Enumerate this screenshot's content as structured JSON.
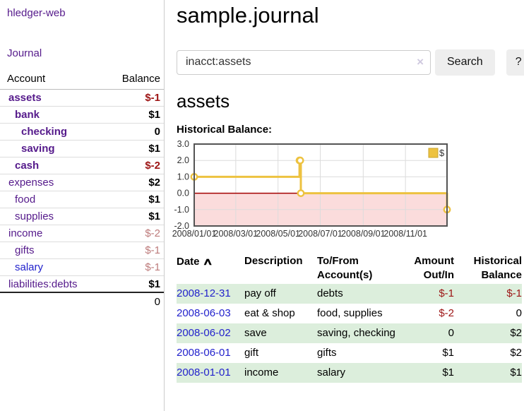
{
  "colors": {
    "link_purple": "#551a8b",
    "link_blue": "#2222cc",
    "negative_strong": "#9d1414",
    "negative_soft": "#bd7b7b",
    "row_green": "#dceedc",
    "button_bg": "#eeeeee",
    "chart_gold": "#edc240",
    "chart_negative_fill": "#fbdcdc",
    "chart_zero_line": "#a40000",
    "chart_grid": "#dcdcdc",
    "chart_border": "#545454"
  },
  "sidebar": {
    "brand": "hledger-web",
    "journal_link": "Journal",
    "header": {
      "account": "Account",
      "balance": "Balance"
    },
    "accounts": [
      {
        "name": "assets",
        "indent": 1,
        "bold": true,
        "balance": "$-1",
        "balance_style": "neg-strong",
        "link": "purple"
      },
      {
        "name": "bank",
        "indent": 2,
        "bold": true,
        "balance": "$1",
        "balance_style": "pos",
        "link": "purple"
      },
      {
        "name": "checking",
        "indent": 3,
        "bold": true,
        "balance": "0",
        "balance_style": "pos",
        "link": "purple"
      },
      {
        "name": "saving",
        "indent": 3,
        "bold": true,
        "balance": "$1",
        "balance_style": "pos",
        "link": "purple"
      },
      {
        "name": "cash",
        "indent": 2,
        "bold": true,
        "balance": "$-2",
        "balance_style": "neg-strong",
        "link": "purple"
      },
      {
        "name": "expenses",
        "indent": 1,
        "bold": false,
        "balance": "$2",
        "balance_style": "pos",
        "link": "purple"
      },
      {
        "name": "food",
        "indent": 2,
        "bold": false,
        "balance": "$1",
        "balance_style": "pos",
        "link": "purple"
      },
      {
        "name": "supplies",
        "indent": 2,
        "bold": false,
        "balance": "$1",
        "balance_style": "pos",
        "link": "purple"
      },
      {
        "name": "income",
        "indent": 1,
        "bold": false,
        "balance": "$-2",
        "balance_style": "neg-soft",
        "link": "purple"
      },
      {
        "name": "gifts",
        "indent": 2,
        "bold": false,
        "balance": "$-1",
        "balance_style": "neg-soft",
        "link": "purple"
      },
      {
        "name": "salary",
        "indent": 2,
        "bold": false,
        "balance": "$-1",
        "balance_style": "neg-soft",
        "link": "blue"
      },
      {
        "name": "liabilities:debts",
        "indent": 1,
        "bold": false,
        "balance": "$1",
        "balance_style": "pos",
        "link": "purple"
      }
    ],
    "total": "0"
  },
  "main": {
    "title": "sample.journal",
    "search": {
      "value": "inacct:assets",
      "clear_icon": "×",
      "search_button": "Search",
      "help_button": "?"
    },
    "account_heading": "assets",
    "chart_title": "Historical Balance:"
  },
  "chart_data": {
    "type": "line",
    "steps": true,
    "title": "Historical Balance",
    "legend": {
      "label": "$",
      "position": "top-right"
    },
    "x_start": "2008-01-01",
    "x_end": "2008-12-31",
    "xticks": [
      "2008/01/01",
      "2008/03/01",
      "2008/05/01",
      "2008/07/01",
      "2008/09/01",
      "2008/11/01"
    ],
    "yticks": [
      3.0,
      2.0,
      1.0,
      0.0,
      -1.0,
      -2.0
    ],
    "ylim": [
      -2,
      3
    ],
    "grid": true,
    "series": [
      {
        "name": "$",
        "points": [
          [
            "2008-01-01",
            1
          ],
          [
            "2008-06-01",
            2
          ],
          [
            "2008-06-02",
            2
          ],
          [
            "2008-06-03",
            0
          ],
          [
            "2008-12-31",
            -1
          ]
        ]
      }
    ]
  },
  "register": {
    "headers": {
      "date": "Date",
      "description": "Description",
      "accounts": "To/From Account(s)",
      "amount": "Amount Out/In",
      "balance": "Historical Balance"
    },
    "sort_icon": "∧",
    "rows": [
      {
        "date": "2008-12-31",
        "description": "pay off",
        "accounts": "debts",
        "amount": "$-1",
        "balance": "$-1"
      },
      {
        "date": "2008-06-03",
        "description": "eat & shop",
        "accounts": "food, supplies",
        "amount": "$-2",
        "balance": "0"
      },
      {
        "date": "2008-06-02",
        "description": "save",
        "accounts": "saving, checking",
        "amount": "0",
        "balance": "$2"
      },
      {
        "date": "2008-06-01",
        "description": "gift",
        "accounts": "gifts",
        "amount": "$1",
        "balance": "$2"
      },
      {
        "date": "2008-01-01",
        "description": "income",
        "accounts": "salary",
        "amount": "$1",
        "balance": "$1"
      }
    ]
  }
}
